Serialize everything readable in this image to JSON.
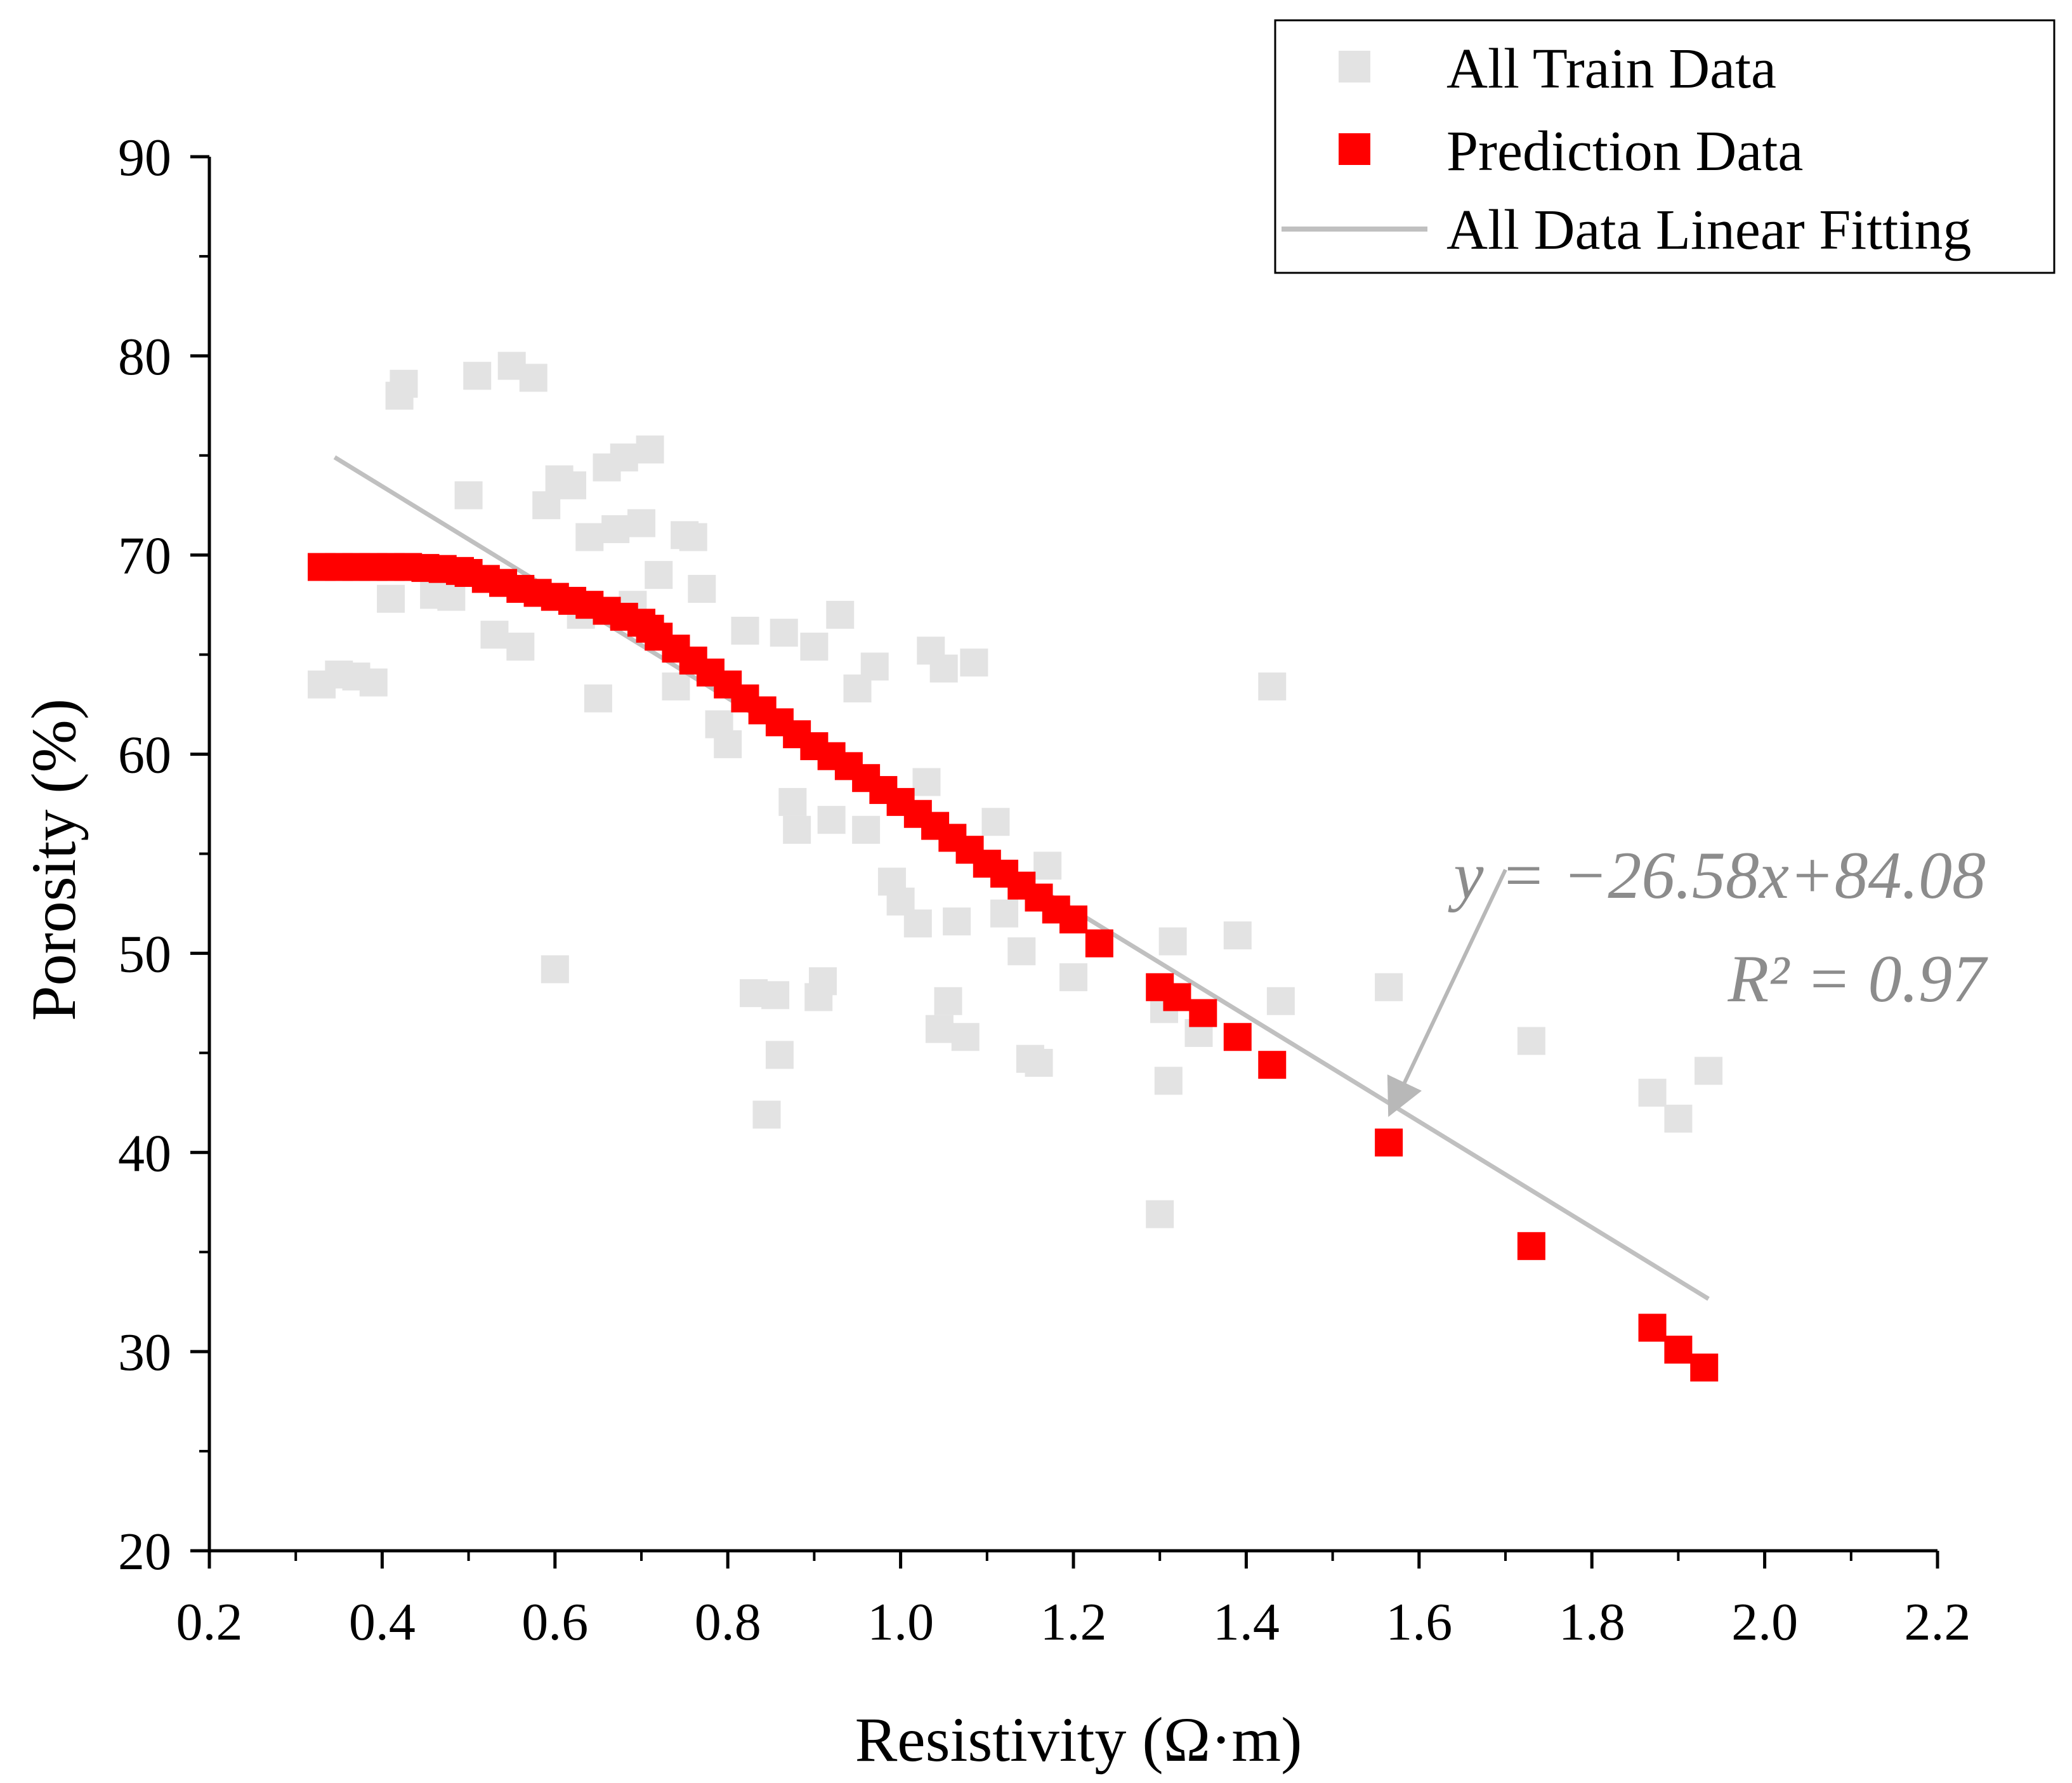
{
  "chart_data": {
    "type": "scatter",
    "title": "",
    "xlabel": "Resistivity (Ω·m)",
    "ylabel": "Porosity (%)",
    "xlim": [
      0.2,
      2.2
    ],
    "ylim": [
      20,
      90
    ],
    "xticks": [
      "0.2",
      "0.4",
      "0.6",
      "0.8",
      "1.0",
      "1.2",
      "1.4",
      "1.6",
      "1.8",
      "2.0",
      "2.2"
    ],
    "yticks": [
      "20",
      "30",
      "40",
      "50",
      "60",
      "70",
      "80",
      "90"
    ],
    "legend_position": "top-right",
    "colors": {
      "train": "#e3e3e3",
      "prediction": "#ff0000",
      "fit": "#c0c0c0",
      "annotation": "#8c8c8c"
    },
    "series": [
      {
        "name": "All Train Data",
        "kind": "scatter",
        "points": [
          [
            0.33,
            63.5
          ],
          [
            0.35,
            64.0
          ],
          [
            0.37,
            63.9
          ],
          [
            0.39,
            63.6
          ],
          [
            0.41,
            67.8
          ],
          [
            0.42,
            78.0
          ],
          [
            0.425,
            78.6
          ],
          [
            0.46,
            68.0
          ],
          [
            0.48,
            67.9
          ],
          [
            0.5,
            73.0
          ],
          [
            0.51,
            79.0
          ],
          [
            0.53,
            66.0
          ],
          [
            0.55,
            79.5
          ],
          [
            0.56,
            65.4
          ],
          [
            0.575,
            78.9
          ],
          [
            0.59,
            72.5
          ],
          [
            0.6,
            49.2
          ],
          [
            0.605,
            73.8
          ],
          [
            0.62,
            73.5
          ],
          [
            0.63,
            67.0
          ],
          [
            0.64,
            70.9
          ],
          [
            0.65,
            62.8
          ],
          [
            0.66,
            74.4
          ],
          [
            0.67,
            71.3
          ],
          [
            0.68,
            74.9
          ],
          [
            0.69,
            67.5
          ],
          [
            0.7,
            71.6
          ],
          [
            0.71,
            75.3
          ],
          [
            0.72,
            69.0
          ],
          [
            0.74,
            63.4
          ],
          [
            0.75,
            71.0
          ],
          [
            0.76,
            70.9
          ],
          [
            0.77,
            68.3
          ],
          [
            0.79,
            61.5
          ],
          [
            0.8,
            60.5
          ],
          [
            0.82,
            66.2
          ],
          [
            0.83,
            48.0
          ],
          [
            0.845,
            41.9
          ],
          [
            0.855,
            47.9
          ],
          [
            0.86,
            44.9
          ],
          [
            0.865,
            66.1
          ],
          [
            0.875,
            57.6
          ],
          [
            0.88,
            56.2
          ],
          [
            0.9,
            65.4
          ],
          [
            0.905,
            47.8
          ],
          [
            0.91,
            48.6
          ],
          [
            0.92,
            56.7
          ],
          [
            0.93,
            67.0
          ],
          [
            0.95,
            63.3
          ],
          [
            0.96,
            56.2
          ],
          [
            0.97,
            64.4
          ],
          [
            0.99,
            53.6
          ],
          [
            1.0,
            52.6
          ],
          [
            1.02,
            51.5
          ],
          [
            1.03,
            58.6
          ],
          [
            1.035,
            65.2
          ],
          [
            1.045,
            46.2
          ],
          [
            1.05,
            64.3
          ],
          [
            1.055,
            47.6
          ],
          [
            1.065,
            51.6
          ],
          [
            1.075,
            45.8
          ],
          [
            1.085,
            64.6
          ],
          [
            1.11,
            56.6
          ],
          [
            1.12,
            52.0
          ],
          [
            1.14,
            50.1
          ],
          [
            1.15,
            44.7
          ],
          [
            1.16,
            44.5
          ],
          [
            1.17,
            54.4
          ],
          [
            1.2,
            48.8
          ],
          [
            1.3,
            36.9
          ],
          [
            1.305,
            47.2
          ],
          [
            1.31,
            43.6
          ],
          [
            1.315,
            50.6
          ],
          [
            1.345,
            46.0
          ],
          [
            1.39,
            50.9
          ],
          [
            1.43,
            63.4
          ],
          [
            1.44,
            47.6
          ],
          [
            1.565,
            48.3
          ],
          [
            1.73,
            45.6
          ],
          [
            1.87,
            43.0
          ],
          [
            1.9,
            41.7
          ],
          [
            1.935,
            44.1
          ]
        ]
      },
      {
        "name": "Prediction Data",
        "kind": "scatter",
        "points": [
          [
            0.33,
            69.4
          ],
          [
            0.35,
            69.4
          ],
          [
            0.37,
            69.4
          ],
          [
            0.39,
            69.4
          ],
          [
            0.41,
            69.4
          ],
          [
            0.43,
            69.4
          ],
          [
            0.45,
            69.35
          ],
          [
            0.47,
            69.3
          ],
          [
            0.49,
            69.2
          ],
          [
            0.5,
            69.1
          ],
          [
            0.52,
            68.8
          ],
          [
            0.54,
            68.6
          ],
          [
            0.56,
            68.3
          ],
          [
            0.58,
            68.1
          ],
          [
            0.6,
            67.9
          ],
          [
            0.62,
            67.7
          ],
          [
            0.64,
            67.5
          ],
          [
            0.66,
            67.2
          ],
          [
            0.68,
            66.9
          ],
          [
            0.7,
            66.6
          ],
          [
            0.71,
            66.3
          ],
          [
            0.72,
            65.9
          ],
          [
            0.74,
            65.3
          ],
          [
            0.76,
            64.7
          ],
          [
            0.78,
            64.1
          ],
          [
            0.8,
            63.5
          ],
          [
            0.82,
            62.8
          ],
          [
            0.84,
            62.2
          ],
          [
            0.86,
            61.6
          ],
          [
            0.88,
            61.0
          ],
          [
            0.9,
            60.4
          ],
          [
            0.92,
            59.9
          ],
          [
            0.94,
            59.4
          ],
          [
            0.96,
            58.8
          ],
          [
            0.98,
            58.2
          ],
          [
            1.0,
            57.6
          ],
          [
            1.02,
            57.0
          ],
          [
            1.04,
            56.4
          ],
          [
            1.06,
            55.8
          ],
          [
            1.08,
            55.2
          ],
          [
            1.1,
            54.5
          ],
          [
            1.12,
            54.0
          ],
          [
            1.14,
            53.4
          ],
          [
            1.16,
            52.8
          ],
          [
            1.18,
            52.2
          ],
          [
            1.2,
            51.7
          ],
          [
            1.23,
            50.5
          ],
          [
            1.3,
            48.3
          ],
          [
            1.32,
            47.8
          ],
          [
            1.35,
            47.0
          ],
          [
            1.39,
            45.8
          ],
          [
            1.43,
            44.4
          ],
          [
            1.565,
            40.5
          ],
          [
            1.73,
            35.3
          ],
          [
            1.87,
            31.2
          ],
          [
            1.9,
            30.1
          ],
          [
            1.93,
            29.2
          ]
        ]
      },
      {
        "name": "All Data Linear Fitting",
        "kind": "line",
        "slope": -26.58,
        "intercept": 84.08,
        "x_range": [
          0.345,
          1.935
        ]
      }
    ],
    "annotation": {
      "equation": "y = −26.58x+84.08",
      "r2": "R² = 0.97",
      "arrow_from": [
        1.7,
        54.2
      ],
      "arrow_to": [
        1.57,
        42.3
      ]
    }
  }
}
